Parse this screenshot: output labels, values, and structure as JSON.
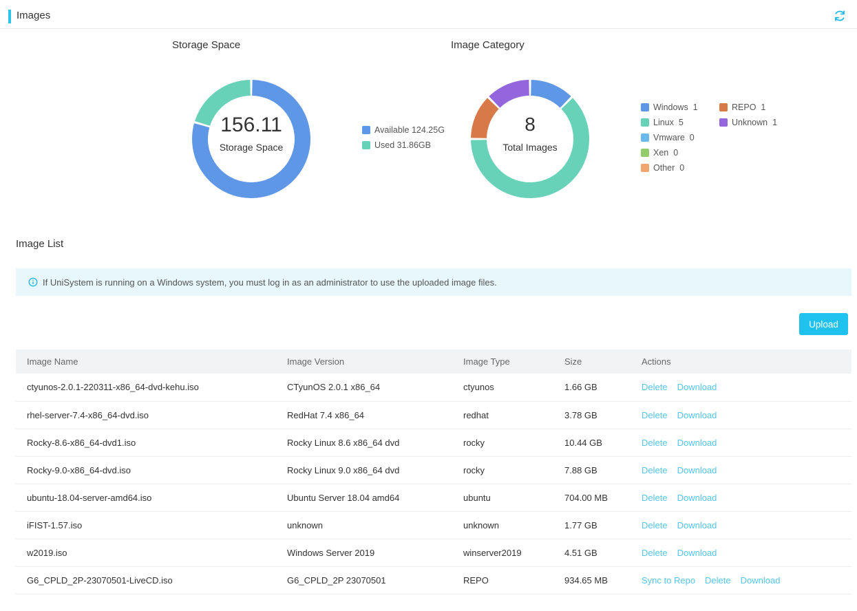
{
  "header": {
    "title": "Images",
    "refresh_icon": "refresh-icon"
  },
  "storage_chart": {
    "title": "Storage Space",
    "center_value": "156.11",
    "center_label": "Storage Space",
    "legend": [
      {
        "label": "Available 124.25G",
        "color": "#5e97e6"
      },
      {
        "label": "Used 31.86GB",
        "color": "#67d2b8"
      }
    ]
  },
  "category_chart": {
    "title": "Image Category",
    "center_value": "8",
    "center_label": "Total Images",
    "legend": [
      {
        "name": "Windows",
        "count": "1",
        "color": "#5e97e6"
      },
      {
        "name": "Linux",
        "count": "5",
        "color": "#67d2b8"
      },
      {
        "name": "Vmware",
        "count": "0",
        "color": "#6ab8ee"
      },
      {
        "name": "Xen",
        "count": "0",
        "color": "#93cc6a"
      },
      {
        "name": "Other",
        "count": "0",
        "color": "#f0a670"
      },
      {
        "name": "REPO",
        "count": "1",
        "color": "#d77a48"
      },
      {
        "name": "Unknown",
        "count": "1",
        "color": "#9366dd"
      }
    ]
  },
  "chart_data": [
    {
      "type": "pie",
      "title": "Storage Space",
      "categories": [
        "Available",
        "Used"
      ],
      "values": [
        124.25,
        31.86
      ],
      "unit": "GB",
      "colors": [
        "#5e97e6",
        "#67d2b8"
      ]
    },
    {
      "type": "pie",
      "title": "Image Category",
      "categories": [
        "Windows",
        "Linux",
        "Vmware",
        "Xen",
        "Other",
        "REPO",
        "Unknown"
      ],
      "values": [
        1,
        5,
        0,
        0,
        0,
        1,
        1
      ],
      "colors": [
        "#5e97e6",
        "#67d2b8",
        "#6ab8ee",
        "#93cc6a",
        "#f0a670",
        "#d77a48",
        "#9366dd"
      ]
    }
  ],
  "image_list": {
    "title": "Image List",
    "notice": "If UniSystem is running on a Windows system, you must log in as an administrator to use the uploaded image files.",
    "upload_label": "Upload",
    "columns": [
      "Image Name",
      "Image Version",
      "Image Type",
      "Size",
      "Actions"
    ],
    "rows": [
      {
        "name": "ctyunos-2.0.1-220311-x86_64-dvd-kehu.iso",
        "version": "CTyunOS 2.0.1 x86_64",
        "type": "ctyunos",
        "size": "1.66 GB",
        "actions": [
          "Delete",
          "Download"
        ]
      },
      {
        "name": "rhel-server-7.4-x86_64-dvd.iso",
        "version": "RedHat 7.4 x86_64",
        "type": "redhat",
        "size": "3.78 GB",
        "actions": [
          "Delete",
          "Download"
        ]
      },
      {
        "name": "Rocky-8.6-x86_64-dvd1.iso",
        "version": "Rocky Linux 8.6 x86_64 dvd",
        "type": "rocky",
        "size": "10.44 GB",
        "actions": [
          "Delete",
          "Download"
        ]
      },
      {
        "name": "Rocky-9.0-x86_64-dvd.iso",
        "version": "Rocky Linux 9.0 x86_64 dvd",
        "type": "rocky",
        "size": "7.88 GB",
        "actions": [
          "Delete",
          "Download"
        ]
      },
      {
        "name": "ubuntu-18.04-server-amd64.iso",
        "version": "Ubuntu Server 18.04 amd64",
        "type": "ubuntu",
        "size": "704.00 MB",
        "actions": [
          "Delete",
          "Download"
        ]
      },
      {
        "name": "iFIST-1.57.iso",
        "version": "unknown",
        "type": "unknown",
        "size": "1.77 GB",
        "actions": [
          "Delete",
          "Download"
        ]
      },
      {
        "name": "w2019.iso",
        "version": "Windows Server 2019",
        "type": "winserver2019",
        "size": "4.51 GB",
        "actions": [
          "Delete",
          "Download"
        ]
      },
      {
        "name": "G6_CPLD_2P-23070501-LiveCD.iso",
        "version": "G6_CPLD_2P 23070501",
        "type": "REPO",
        "size": "934.65 MB",
        "actions": [
          "Sync to Repo",
          "Delete",
          "Download"
        ]
      }
    ]
  }
}
